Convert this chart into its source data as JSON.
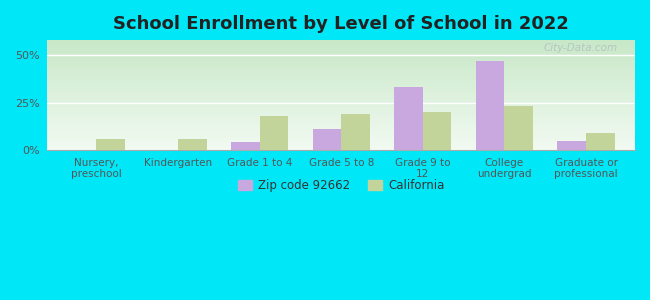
{
  "title": "School Enrollment by Level of School in 2022",
  "categories": [
    "Nursery,\npreschool",
    "Kindergarten",
    "Grade 1 to 4",
    "Grade 5 to 8",
    "Grade 9 to\n12",
    "College\nundergrad",
    "Graduate or\nprofessional"
  ],
  "zip_values": [
    0,
    0,
    4,
    11,
    33,
    47,
    5
  ],
  "ca_values": [
    6,
    6,
    18,
    19,
    20,
    23,
    9
  ],
  "zip_color": "#c9a8e0",
  "ca_color": "#c2d49a",
  "background_outer": "#00e8f8",
  "yticks": [
    0,
    25,
    50
  ],
  "ylim": [
    0,
    58
  ],
  "legend_zip": "Zip code 92662",
  "legend_ca": "California",
  "title_fontsize": 13,
  "watermark": "City-Data.com"
}
